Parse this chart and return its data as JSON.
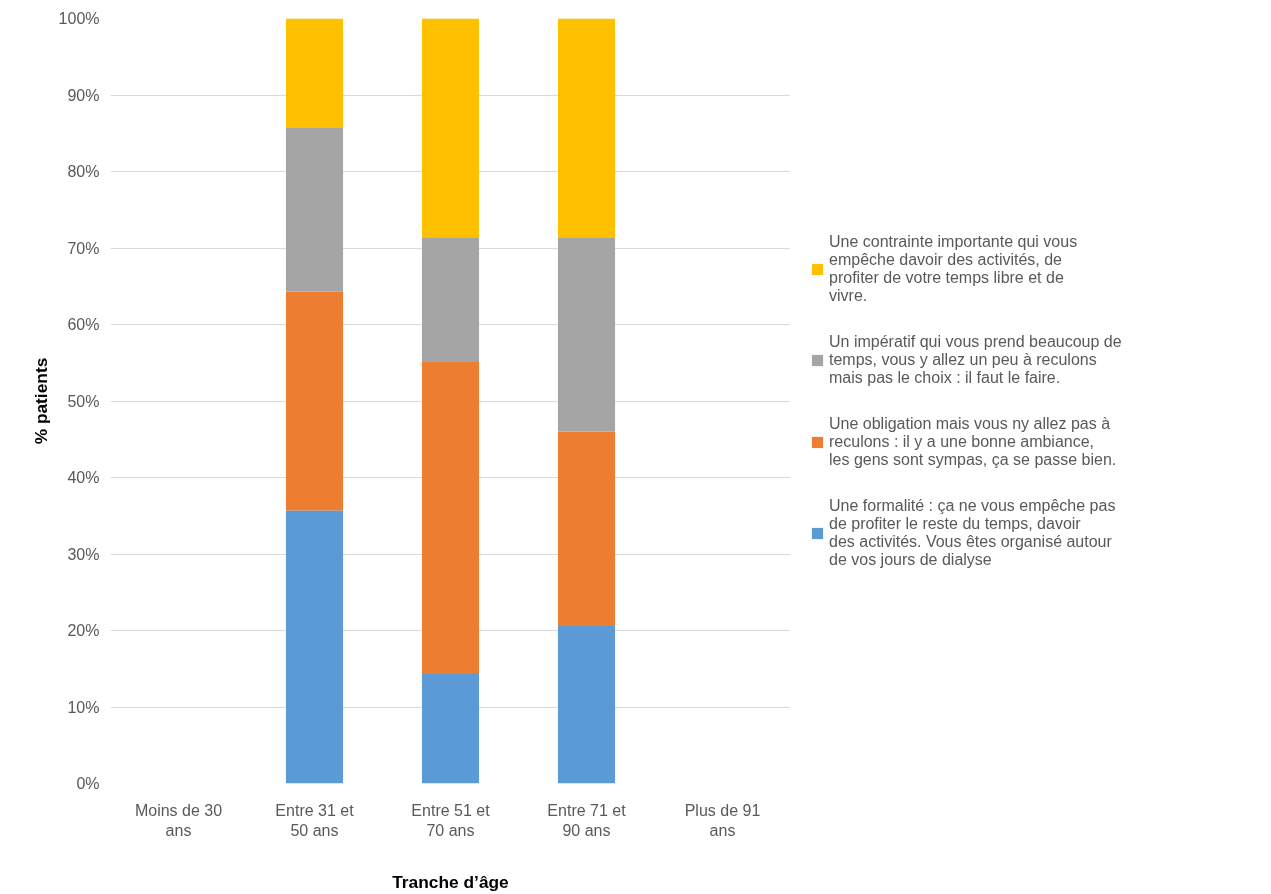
{
  "chart_data": {
    "type": "bar",
    "stacked": true,
    "xlabel": "Tranche d’âge",
    "ylabel": "% patients",
    "categories": [
      "Moins de 30 ans",
      "Entre 31 et 50 ans",
      "Entre 51 et 70 ans",
      "Entre 71 et 90 ans",
      "Plus de 91 ans"
    ],
    "series": [
      {
        "name": "Une formalité : ça ne vous empêche pas de profiter le reste du temps, davoir des activités. Vous êtes organisé autour de vos jours de dialyse",
        "color": "#5b9bd5",
        "values": [
          null,
          35.7,
          14.3,
          20.6,
          null
        ]
      },
      {
        "name": "Une obligation mais vous ny allez pas à reculons : il y a une bonne ambiance, les gens sont sympas, ça se passe bien.",
        "color": "#ed7d31",
        "values": [
          null,
          28.6,
          40.8,
          25.4,
          null
        ]
      },
      {
        "name": "Un impératif qui vous prend beaucoup de temps, vous y allez un peu à reculons mais pas le choix : il faut le faire.",
        "color": "#a5a5a5",
        "values": [
          null,
          21.4,
          16.3,
          25.4,
          null
        ]
      },
      {
        "name": "Une contrainte importante qui vous empêche davoir des activités, de profiter de votre temps libre et de vivre.",
        "color": "#ffc000",
        "values": [
          null,
          14.3,
          28.6,
          28.6,
          null
        ]
      }
    ],
    "ylim": [
      0,
      100
    ],
    "yticks": [
      {
        "value": 0,
        "label": "0%"
      },
      {
        "value": 10,
        "label": "10%"
      },
      {
        "value": 20,
        "label": "20%"
      },
      {
        "value": 30,
        "label": "30%"
      },
      {
        "value": 40,
        "label": "40%"
      },
      {
        "value": 50,
        "label": "50%"
      },
      {
        "value": 60,
        "label": "60%"
      },
      {
        "value": 70,
        "label": "70%"
      },
      {
        "value": 80,
        "label": "80%"
      },
      {
        "value": 90,
        "label": "90%"
      },
      {
        "value": 100,
        "label": "100%"
      }
    ],
    "grid": "y",
    "legend": "right"
  }
}
